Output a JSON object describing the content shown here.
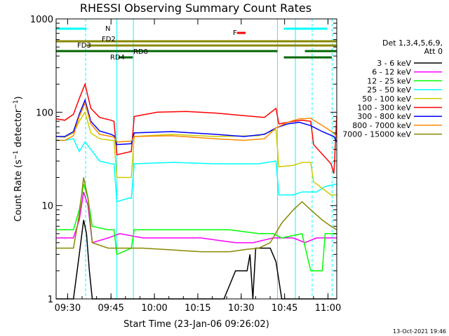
{
  "chart_data": {
    "type": "line",
    "title": "RHESSI Observing Summary Count Rates",
    "xlabel": "Start Time (23-Jan-06 09:26:02)",
    "ylabel": "Count Rate (s⁻¹ detector⁻¹)",
    "ylabel_main": "Count Rate (s",
    "ylabel_sup1": "−1",
    "ylabel_mid": " detector",
    "ylabel_sup2": "−1",
    "ylabel_end": ")",
    "yscale": "log",
    "ylim": [
      1,
      1000
    ],
    "xlim_minutes": [
      0,
      97
    ],
    "xticks": [
      {
        "label": "09:30",
        "minute": 3.97
      },
      {
        "label": "09:45",
        "minute": 18.97
      },
      {
        "label": "10:00",
        "minute": 33.97
      },
      {
        "label": "10:15",
        "minute": 48.97
      },
      {
        "label": "10:30",
        "minute": 63.97
      },
      {
        "label": "10:45",
        "minute": 78.97
      },
      {
        "label": "11:00",
        "minute": 93.97
      }
    ],
    "yticks": [
      {
        "label": "1",
        "value": 1
      },
      {
        "label": "10",
        "value": 10
      },
      {
        "label": "100",
        "value": 100
      },
      {
        "label": "1000",
        "value": 1000
      }
    ],
    "legend_header": [
      "Det 1,3,4,5,6,9,",
      "Att 0"
    ],
    "legend_position": "right",
    "timestamp": "13-Oct-2021 19:46",
    "series": [
      {
        "name": "3 - 6 keV",
        "color": "#000000",
        "points": [
          [
            0,
            1
          ],
          [
            6,
            1
          ],
          [
            8,
            3
          ],
          [
            9.5,
            7
          ],
          [
            10.5,
            5
          ],
          [
            11.5,
            2
          ],
          [
            12.5,
            1
          ],
          [
            30,
            1
          ],
          [
            58,
            1
          ],
          [
            62,
            2
          ],
          [
            66,
            2
          ],
          [
            67,
            3
          ],
          [
            68,
            1
          ],
          [
            69,
            3.5
          ],
          [
            74,
            3.5
          ],
          [
            76,
            2.5
          ],
          [
            78,
            1
          ],
          [
            97,
            1
          ]
        ]
      },
      {
        "name": "6 - 12 keV",
        "color": "#ff00ff",
        "points": [
          [
            0,
            4.5
          ],
          [
            6,
            4.5
          ],
          [
            8,
            7
          ],
          [
            9.5,
            14
          ],
          [
            11,
            10
          ],
          [
            12.5,
            4
          ],
          [
            18,
            4.5
          ],
          [
            22,
            5
          ],
          [
            30,
            4.5
          ],
          [
            50,
            4.5
          ],
          [
            62,
            4
          ],
          [
            68,
            4
          ],
          [
            75,
            4.5
          ],
          [
            82,
            4.5
          ],
          [
            86,
            4
          ],
          [
            90,
            4.5
          ],
          [
            97,
            4.5
          ]
        ]
      },
      {
        "name": "12 - 25 keV",
        "color": "#00ff00",
        "points": [
          [
            0,
            5.5
          ],
          [
            6,
            5.5
          ],
          [
            8,
            9
          ],
          [
            9.5,
            17
          ],
          [
            11,
            12
          ],
          [
            12.5,
            6
          ],
          [
            18,
            5.5
          ],
          [
            20,
            5.5
          ],
          [
            21,
            3
          ],
          [
            26,
            3.5
          ],
          [
            27,
            5.5
          ],
          [
            60,
            5.5
          ],
          [
            70,
            5
          ],
          [
            75,
            5
          ],
          [
            78,
            4.5
          ],
          [
            85,
            5
          ],
          [
            88,
            2
          ],
          [
            92,
            2
          ],
          [
            93,
            5
          ],
          [
            97,
            5
          ]
        ]
      },
      {
        "name": "25 - 50 keV",
        "color": "#00ffff",
        "points": [
          [
            0,
            50
          ],
          [
            3,
            50
          ],
          [
            6,
            52
          ],
          [
            8,
            38
          ],
          [
            10,
            48
          ],
          [
            12,
            40
          ],
          [
            15,
            30
          ],
          [
            19,
            28
          ],
          [
            20,
            28
          ],
          [
            21,
            11
          ],
          [
            25,
            12
          ],
          [
            26,
            12
          ],
          [
            27,
            28
          ],
          [
            40,
            29
          ],
          [
            55,
            28
          ],
          [
            70,
            28
          ],
          [
            76,
            30
          ],
          [
            77,
            13
          ],
          [
            82,
            13
          ],
          [
            85,
            14
          ],
          [
            90,
            14
          ],
          [
            93,
            16
          ],
          [
            97,
            17
          ]
        ]
      },
      {
        "name": "50 - 100 keV",
        "color": "#cccc00",
        "points": [
          [
            0,
            55
          ],
          [
            3,
            54
          ],
          [
            6,
            60
          ],
          [
            8,
            80
          ],
          [
            10,
            100
          ],
          [
            12,
            60
          ],
          [
            15,
            52
          ],
          [
            19,
            50
          ],
          [
            20,
            50
          ],
          [
            21,
            20
          ],
          [
            26,
            20
          ],
          [
            27,
            55
          ],
          [
            40,
            58
          ],
          [
            55,
            55
          ],
          [
            70,
            56
          ],
          [
            76,
            65
          ],
          [
            77,
            26
          ],
          [
            82,
            27
          ],
          [
            85,
            29
          ],
          [
            88,
            29
          ],
          [
            89,
            18
          ],
          [
            95,
            13
          ],
          [
            97,
            13
          ]
        ]
      },
      {
        "name": "100 - 300 keV",
        "color": "#ff0000",
        "points": [
          [
            0,
            85
          ],
          [
            3,
            82
          ],
          [
            6,
            95
          ],
          [
            8,
            140
          ],
          [
            10,
            200
          ],
          [
            12,
            110
          ],
          [
            15,
            88
          ],
          [
            19,
            82
          ],
          [
            20,
            80
          ],
          [
            21,
            35
          ],
          [
            26,
            38
          ],
          [
            27,
            90
          ],
          [
            35,
            100
          ],
          [
            45,
            102
          ],
          [
            55,
            98
          ],
          [
            65,
            92
          ],
          [
            72,
            88
          ],
          [
            76,
            110
          ],
          [
            77,
            75
          ],
          [
            82,
            80
          ],
          [
            85,
            82
          ],
          [
            88,
            80
          ],
          [
            89,
            45
          ],
          [
            95,
            28
          ],
          [
            96,
            22
          ],
          [
            97,
            90
          ]
        ]
      },
      {
        "name": "300 - 800 keV",
        "color": "#0000ff",
        "points": [
          [
            0,
            55
          ],
          [
            3,
            55
          ],
          [
            6,
            62
          ],
          [
            8,
            95
          ],
          [
            10,
            135
          ],
          [
            12,
            80
          ],
          [
            15,
            63
          ],
          [
            19,
            58
          ],
          [
            20,
            56
          ],
          [
            21,
            45
          ],
          [
            26,
            46
          ],
          [
            27,
            60
          ],
          [
            40,
            62
          ],
          [
            55,
            58
          ],
          [
            65,
            55
          ],
          [
            72,
            58
          ],
          [
            76,
            68
          ],
          [
            80,
            75
          ],
          [
            84,
            78
          ],
          [
            88,
            72
          ],
          [
            92,
            62
          ],
          [
            96,
            55
          ],
          [
            97,
            48
          ]
        ]
      },
      {
        "name": "800 - 7000 keV",
        "color": "#ff8800",
        "points": [
          [
            0,
            50
          ],
          [
            3,
            50
          ],
          [
            6,
            56
          ],
          [
            8,
            90
          ],
          [
            10,
            125
          ],
          [
            12,
            75
          ],
          [
            15,
            58
          ],
          [
            19,
            55
          ],
          [
            20,
            54
          ],
          [
            21,
            48
          ],
          [
            26,
            49
          ],
          [
            27,
            55
          ],
          [
            40,
            56
          ],
          [
            55,
            52
          ],
          [
            65,
            50
          ],
          [
            72,
            52
          ],
          [
            76,
            68
          ],
          [
            80,
            78
          ],
          [
            84,
            85
          ],
          [
            88,
            86
          ],
          [
            92,
            72
          ],
          [
            96,
            60
          ],
          [
            97,
            54
          ]
        ]
      },
      {
        "name": "7000 - 15000 keV",
        "color": "#888800",
        "points": [
          [
            0,
            3.5
          ],
          [
            6,
            3.5
          ],
          [
            8,
            8
          ],
          [
            9.5,
            20
          ],
          [
            11,
            12
          ],
          [
            12.5,
            4
          ],
          [
            18,
            3.5
          ],
          [
            30,
            3.5
          ],
          [
            50,
            3.2
          ],
          [
            60,
            3.2
          ],
          [
            66,
            3.4
          ],
          [
            70,
            3.5
          ],
          [
            74,
            4
          ],
          [
            78,
            6.5
          ],
          [
            82,
            9
          ],
          [
            85,
            11
          ],
          [
            88,
            9
          ],
          [
            92,
            7
          ],
          [
            95,
            6
          ],
          [
            97,
            5.5
          ]
        ]
      }
    ],
    "annotations": {
      "rd_segments_label": "RD4",
      "rd0_label": "RD0",
      "fd2_label": "FD2",
      "fd3_label": "FD3",
      "n_label": "N",
      "f_label": "F"
    },
    "state_bars": [
      {
        "label": "N",
        "color": "#00ffff",
        "level": 1,
        "ranges": [
          [
            0,
            10.5
          ],
          [
            78.7,
            93.7
          ]
        ]
      },
      {
        "label": "FD2",
        "color": "#888800",
        "level": 2,
        "ranges": [
          [
            0,
            97
          ]
        ]
      },
      {
        "label": "FD3",
        "color": "#888800",
        "level": 3,
        "ranges": [
          [
            10.5,
            97
          ]
        ]
      },
      {
        "label": "RD0",
        "color": "#006600",
        "level": 4,
        "ranges": [
          [
            0,
            76.5
          ],
          [
            86,
            97
          ]
        ]
      },
      {
        "label": "RD4",
        "color": "#006600",
        "level": 5,
        "ranges": [
          [
            21.5,
            26.5
          ],
          [
            78.7,
            95.3
          ]
        ]
      },
      {
        "label": "F",
        "color": "#ff0000",
        "level": 0,
        "ranges": [
          [
            62.5,
            65.5
          ]
        ]
      }
    ],
    "vlines": [
      {
        "minute": 10.2,
        "color": "#00ffff",
        "dashed": true
      },
      {
        "minute": 21.0,
        "color": "#00ffff",
        "dashed": false
      },
      {
        "minute": 26.7,
        "color": "#00ffff",
        "dashed": false
      },
      {
        "minute": 76.5,
        "color": "#00ffff",
        "dashed": false
      },
      {
        "minute": 82.7,
        "color": "#00ffff",
        "dashed": false
      },
      {
        "minute": 88.5,
        "color": "#00ffff",
        "dashed": true
      },
      {
        "minute": 95.4,
        "color": "#00ffff",
        "dashed": true
      }
    ]
  }
}
